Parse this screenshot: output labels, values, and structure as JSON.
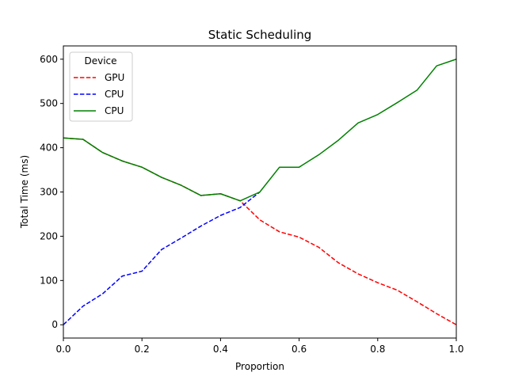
{
  "chart_data": {
    "type": "line",
    "title": "Static Scheduling",
    "xlabel": "Proportion",
    "ylabel": "Total Time (ms)",
    "xlim": [
      0.0,
      1.0
    ],
    "ylim": [
      -30,
      630
    ],
    "xticks": [
      0.0,
      0.2,
      0.4,
      0.6,
      0.8,
      1.0
    ],
    "xtick_labels": [
      "0.0",
      "0.2",
      "0.4",
      "0.6",
      "0.8",
      "1.0"
    ],
    "yticks": [
      0,
      100,
      200,
      300,
      400,
      500,
      600
    ],
    "ytick_labels": [
      "0",
      "100",
      "200",
      "300",
      "400",
      "500",
      "600"
    ],
    "grid": false,
    "legend": {
      "title": "Device",
      "position": "top-left"
    },
    "series": [
      {
        "name": "GPU",
        "color": "#ff0000",
        "style": "dashed",
        "x": [
          0.0,
          0.05,
          0.1,
          0.15,
          0.2,
          0.25,
          0.3,
          0.35,
          0.4,
          0.45,
          0.5,
          0.55,
          0.6,
          0.65,
          0.7,
          0.75,
          0.8,
          0.85,
          0.9,
          0.95,
          1.0
        ],
        "y": [
          422,
          419,
          389,
          370,
          356,
          333,
          315,
          292,
          296,
          280,
          237,
          210,
          198,
          175,
          140,
          115,
          95,
          78,
          52,
          25,
          0
        ]
      },
      {
        "name": "CPU",
        "color": "#0000ff",
        "style": "dashed",
        "x": [
          0.0,
          0.05,
          0.1,
          0.15,
          0.2,
          0.25,
          0.3,
          0.35,
          0.4,
          0.45,
          0.5
        ],
        "y": [
          0,
          42,
          70,
          110,
          121,
          170,
          196,
          223,
          247,
          265,
          300
        ]
      },
      {
        "name": "CPU",
        "color": "#008000",
        "style": "solid",
        "x": [
          0.0,
          0.05,
          0.1,
          0.15,
          0.2,
          0.25,
          0.3,
          0.35,
          0.4,
          0.45,
          0.5,
          0.55,
          0.6,
          0.65,
          0.7,
          0.75,
          0.8,
          0.85,
          0.9,
          0.95,
          1.0
        ],
        "y": [
          422,
          419,
          389,
          370,
          356,
          333,
          315,
          292,
          296,
          280,
          300,
          356,
          356,
          384,
          417,
          456,
          475,
          502,
          530,
          585,
          600
        ]
      }
    ]
  }
}
